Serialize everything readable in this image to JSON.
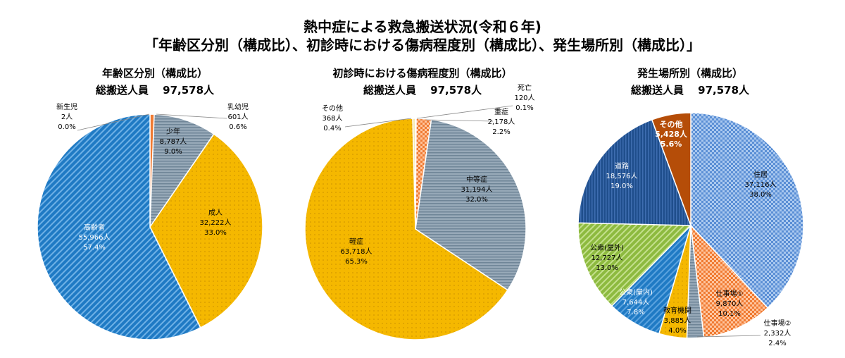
{
  "title": {
    "line1": "熱中症による救急搬送状況(令和６年)",
    "line2": "「年齢区分別（構成比）、初診時における傷病程度別（構成比）、発生場所別（構成比）」"
  },
  "colors": {
    "blue_diag": "#1f7ac4",
    "grey_stripe": "#8fa3b5",
    "yellow_dots": "#f5b800",
    "orange_check": "#f07b33",
    "navy": "#1f4e8c",
    "green": "#8dba3f",
    "brown": "#b54d08",
    "light_blue_check": "#5b9bd5"
  },
  "chart_data": [
    {
      "type": "pie",
      "title": "年齢区分別（構成比）",
      "subtitle": "総搬送人員　 97,578人",
      "slices": [
        {
          "name": "新生児",
          "count": "2人",
          "percent": "0.0%",
          "value": 0.0
        },
        {
          "name": "乳幼児",
          "count": "601人",
          "percent": "0.6%",
          "value": 0.6
        },
        {
          "name": "少年",
          "count": "8,787人",
          "percent": "9.0%",
          "value": 9.0
        },
        {
          "name": "成人",
          "count": "32,222人",
          "percent": "33.0%",
          "value": 33.0
        },
        {
          "name": "高齢者",
          "count": "55,966人",
          "percent": "57.4%",
          "value": 57.4
        }
      ]
    },
    {
      "type": "pie",
      "title": "初診時における傷病程度別（構成比）",
      "subtitle": "総搬送人員　 97,578人",
      "slices": [
        {
          "name": "死亡",
          "count": "120人",
          "percent": "0.1%",
          "value": 0.1
        },
        {
          "name": "重症",
          "count": "2,178人",
          "percent": "2.2%",
          "value": 2.2
        },
        {
          "name": "中等症",
          "count": "31,194人",
          "percent": "32.0%",
          "value": 32.0
        },
        {
          "name": "軽症",
          "count": "63,718人",
          "percent": "65.3%",
          "value": 65.3
        },
        {
          "name": "その他",
          "count": "368人",
          "percent": "0.4%",
          "value": 0.4
        }
      ]
    },
    {
      "type": "pie",
      "title": "発生場所別（構成比）",
      "subtitle": "総搬送人員　 97,578人",
      "slices": [
        {
          "name": "住居",
          "count": "37,116人",
          "percent": "38.0%",
          "value": 38.0
        },
        {
          "name": "仕事場①",
          "count": "9,870人",
          "percent": "10.1%",
          "value": 10.1
        },
        {
          "name": "仕事場②",
          "count": "2,332人",
          "percent": "2.4%",
          "value": 2.4
        },
        {
          "name": "教育機関",
          "count": "3,885人",
          "percent": "4.0%",
          "value": 4.0
        },
        {
          "name": "公衆(屋内)",
          "count": "7,644人",
          "percent": "7.8%",
          "value": 7.8
        },
        {
          "name": "公衆(屋外)",
          "count": "12,727人",
          "percent": "13.0%",
          "value": 13.0
        },
        {
          "name": "道路",
          "count": "18,576人",
          "percent": "19.0%",
          "value": 19.0
        },
        {
          "name": "その他",
          "count": "5,428人",
          "percent": "5.6%",
          "value": 5.6
        }
      ]
    }
  ]
}
